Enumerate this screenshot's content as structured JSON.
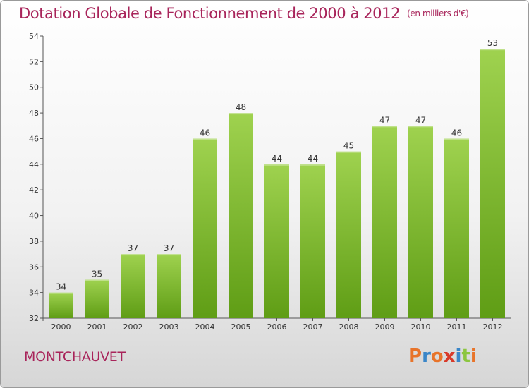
{
  "header": {
    "title": "Dotation Globale de Fonctionnement de 2000 à 2012",
    "unit": "(en milliers d'€)"
  },
  "footer": {
    "commune": "MONTCHAUVET",
    "logo": "Proxiti"
  },
  "colors": {
    "accent": "#a8245a",
    "bar_top": "#9fd24f",
    "bar_bottom": "#5f9d15",
    "logo_letters": [
      "#e8742a",
      "#3a86c8",
      "#e8742a",
      "#d83a2a",
      "#3a86c8",
      "#8cc63f",
      "#e8742a"
    ]
  },
  "chart_data": {
    "type": "bar",
    "title": "Dotation Globale de Fonctionnement de 2000 à 2012",
    "subtitle": "(en milliers d'€)",
    "xlabel": "",
    "ylabel": "",
    "categories": [
      "2000",
      "2001",
      "2002",
      "2003",
      "2004",
      "2005",
      "2006",
      "2007",
      "2008",
      "2009",
      "2010",
      "2011",
      "2012"
    ],
    "values": [
      34,
      35,
      37,
      37,
      46,
      48,
      44,
      44,
      45,
      47,
      47,
      46,
      53
    ],
    "ylim": [
      32,
      54
    ],
    "yticks": [
      32,
      34,
      36,
      38,
      40,
      42,
      44,
      46,
      48,
      50,
      52,
      54
    ],
    "grid": false,
    "legend": "none"
  }
}
